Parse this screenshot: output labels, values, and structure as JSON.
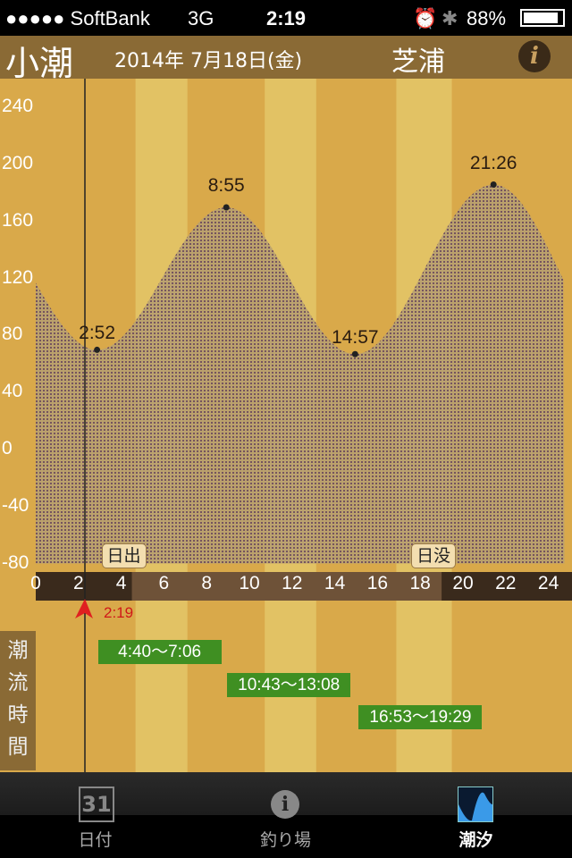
{
  "status": {
    "carrier": "●●●●● SoftBank",
    "network": "3G",
    "time": "2:19",
    "battery": "88%"
  },
  "header": {
    "tide_name": "小潮",
    "date": "2014年 7月18日(金)",
    "location": "芝浦",
    "info_icon": "info-icon"
  },
  "chart_data": {
    "type": "area",
    "ylim": [
      -80,
      240
    ],
    "xlim": [
      0,
      24.75
    ],
    "y_ticks": [
      "240",
      "200",
      "160",
      "120",
      "80",
      "40",
      "0",
      "-40",
      "-80"
    ],
    "x_ticks": [
      "0",
      "2",
      "4",
      "6",
      "8",
      "10",
      "12",
      "14",
      "16",
      "18",
      "20",
      "22",
      "24"
    ],
    "extremes": [
      {
        "label": "2:52",
        "x": 2.87,
        "y": 70
      },
      {
        "label": "8:55",
        "x": 8.92,
        "y": 170
      },
      {
        "label": "14:57",
        "x": 14.95,
        "y": 67
      },
      {
        "label": "21:26",
        "x": 21.43,
        "y": 186
      }
    ],
    "start_value": 122,
    "end_value": 125,
    "sunrise": {
      "label": "日出",
      "hour": 4.5
    },
    "sunset": {
      "label": "日没",
      "hour": 19.0
    },
    "current_time": {
      "label": "2:19",
      "hour": 2.32
    },
    "colors": {
      "background": "#d9a94a",
      "stripe": "#e2c264",
      "fill_dots": "#7a5a6a",
      "current_marker": "#e02020"
    }
  },
  "tidal_current": {
    "label": [
      "潮",
      "流",
      "時",
      "間"
    ],
    "periods": [
      {
        "text": "4:40〜7:06",
        "start": 4.67,
        "end": 7.1
      },
      {
        "text": "10:43〜13:08",
        "start": 10.72,
        "end": 13.13
      },
      {
        "text": "16:53〜19:29",
        "start": 16.88,
        "end": 19.48
      }
    ]
  },
  "tabs": [
    {
      "label": "日付",
      "icon": "calendar-icon",
      "active": false
    },
    {
      "label": "釣り場",
      "icon": "info-icon",
      "active": false
    },
    {
      "label": "潮汐",
      "icon": "tide-graph-icon",
      "active": true
    }
  ]
}
